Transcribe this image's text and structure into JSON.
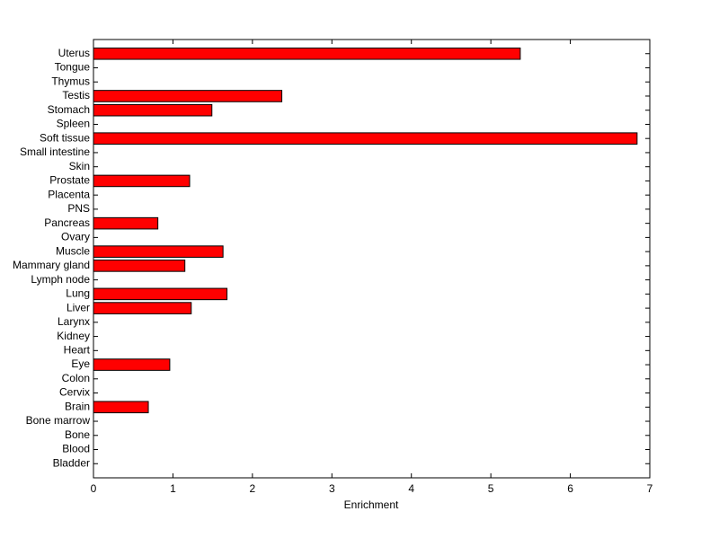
{
  "chart_data": {
    "type": "barh",
    "xlabel": "Enrichment",
    "categories": [
      "Bladder",
      "Blood",
      "Bone",
      "Bone marrow",
      "Brain",
      "Cervix",
      "Colon",
      "Eye",
      "Heart",
      "Kidney",
      "Larynx",
      "Liver",
      "Lung",
      "Lymph node",
      "Mammary gland",
      "Muscle",
      "Ovary",
      "Pancreas",
      "PNS",
      "Placenta",
      "Prostate",
      "Skin",
      "Small intestine",
      "Soft tissue",
      "Spleen",
      "Stomach",
      "Testis",
      "Thymus",
      "Tongue",
      "Uterus"
    ],
    "values": [
      0,
      0,
      0,
      0,
      0.69,
      0,
      0,
      0.96,
      0,
      0,
      0,
      1.23,
      1.68,
      0,
      1.15,
      1.63,
      0,
      0.81,
      0,
      0,
      1.21,
      0,
      0,
      6.84,
      0,
      1.49,
      2.37,
      0,
      0,
      5.37
    ],
    "color": "#ff0000",
    "xlim": [
      0,
      7
    ],
    "xticks": [
      0,
      1,
      2,
      3,
      4,
      5,
      6,
      7
    ]
  }
}
